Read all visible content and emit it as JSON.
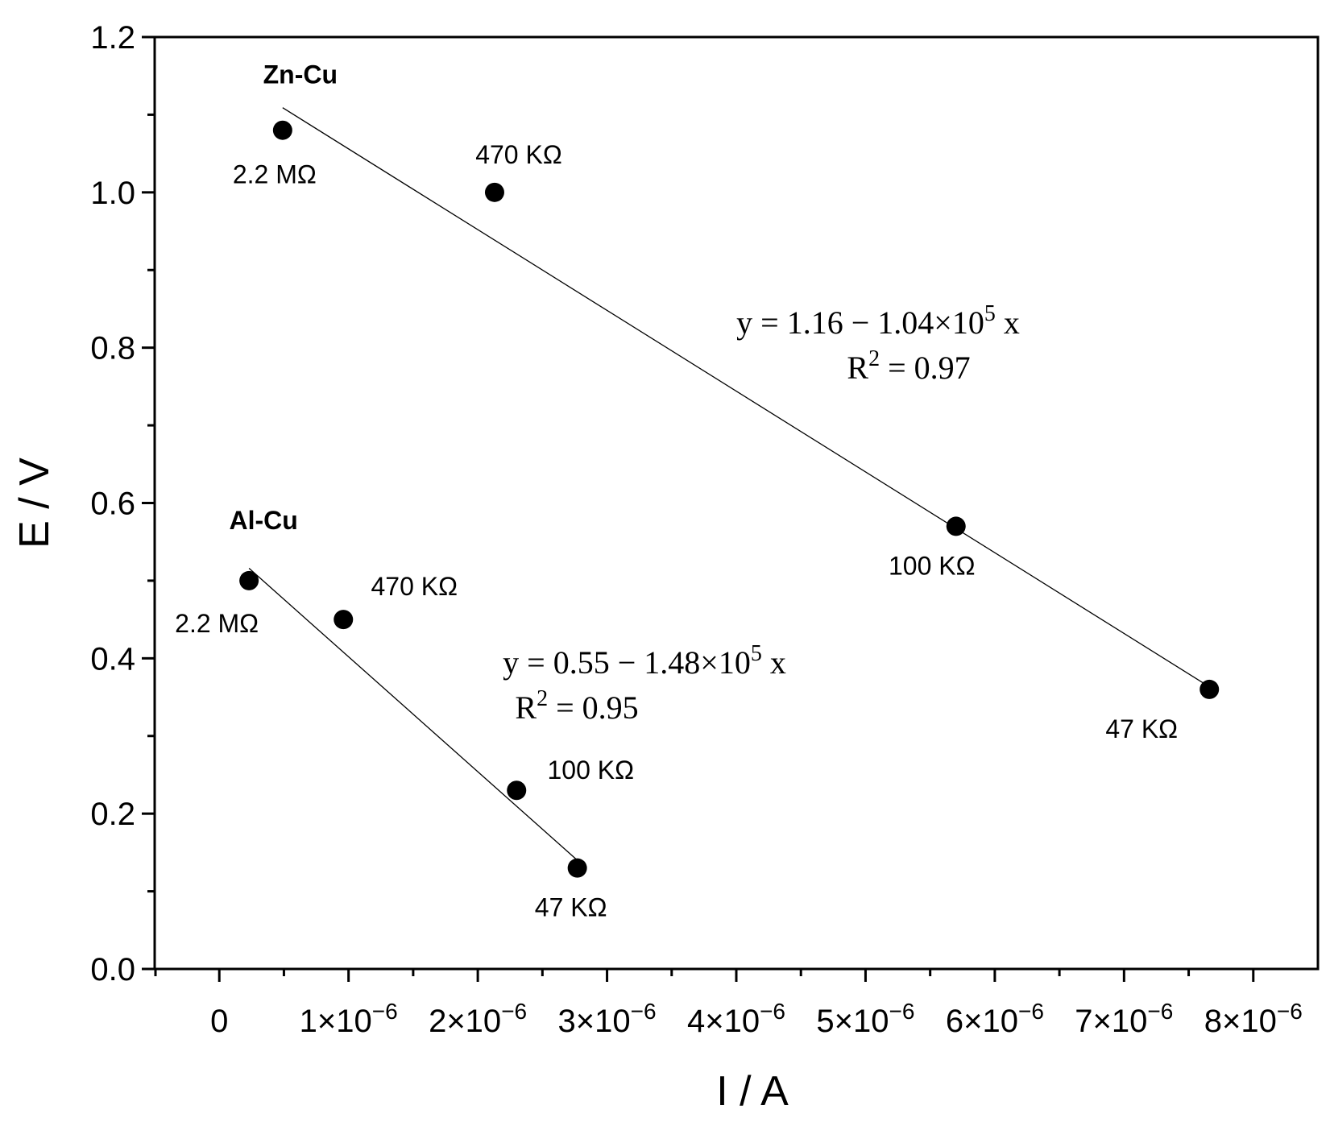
{
  "chart_data": {
    "type": "scatter",
    "xlabel": "I / A",
    "ylabel": "E / V",
    "xlim": [
      -5e-07,
      8.5e-06
    ],
    "ylim": [
      0,
      1.2
    ],
    "x_ticks": [
      {
        "value": 0,
        "mantissa": "0",
        "exp": ""
      },
      {
        "value": 1e-06,
        "mantissa": "1×10",
        "exp": "−6"
      },
      {
        "value": 2e-06,
        "mantissa": "2×10",
        "exp": "−6"
      },
      {
        "value": 3e-06,
        "mantissa": "3×10",
        "exp": "−6"
      },
      {
        "value": 4e-06,
        "mantissa": "4×10",
        "exp": "−6"
      },
      {
        "value": 5e-06,
        "mantissa": "5×10",
        "exp": "−6"
      },
      {
        "value": 6e-06,
        "mantissa": "6×10",
        "exp": "−6"
      },
      {
        "value": 7e-06,
        "mantissa": "7×10",
        "exp": "−6"
      },
      {
        "value": 8e-06,
        "mantissa": "8×10",
        "exp": "−6"
      }
    ],
    "y_ticks": [
      {
        "value": 0.0,
        "label": "0.0"
      },
      {
        "value": 0.2,
        "label": "0.2"
      },
      {
        "value": 0.4,
        "label": "0.4"
      },
      {
        "value": 0.6,
        "label": "0.6"
      },
      {
        "value": 0.8,
        "label": "0.8"
      },
      {
        "value": 1.0,
        "label": "1.0"
      },
      {
        "value": 1.2,
        "label": "1.2"
      }
    ],
    "grid": false,
    "series": [
      {
        "name": "Zn-Cu",
        "points": [
          {
            "x": 4.9e-07,
            "y": 1.08,
            "label": "2.2 MΩ"
          },
          {
            "x": 2.13e-06,
            "y": 1.0,
            "label": "470 KΩ"
          },
          {
            "x": 5.7e-06,
            "y": 0.57,
            "label": "100 KΩ"
          },
          {
            "x": 7.66e-06,
            "y": 0.36,
            "label": "47 KΩ"
          }
        ],
        "fit": {
          "x_range": [
            4.9e-07,
            7.66e-06
          ],
          "intercept": 1.16,
          "slope": -104000.0,
          "equation_main": "y = 1.16 − 1.04×10",
          "equation_exp": "5",
          "equation_tail": " x",
          "r2_label": "R",
          "r2_exp": "2",
          "r2_value": " = 0.97"
        }
      },
      {
        "name": "Al-Cu",
        "points": [
          {
            "x": 2.3e-07,
            "y": 0.5,
            "label": "2.2 MΩ"
          },
          {
            "x": 9.6e-07,
            "y": 0.45,
            "label": "470 KΩ"
          },
          {
            "x": 2.3e-06,
            "y": 0.23,
            "label": "100 KΩ"
          },
          {
            "x": 2.77e-06,
            "y": 0.13,
            "label": "47 KΩ"
          }
        ],
        "fit": {
          "x_range": [
            2.3e-07,
            2.77e-06
          ],
          "intercept": 0.55,
          "slope": -148000.0,
          "equation_main": "y = 0.55 − 1.48×10",
          "equation_exp": "5",
          "equation_tail": " x",
          "r2_label": "R",
          "r2_exp": "2",
          "r2_value": " = 0.95"
        }
      }
    ]
  }
}
